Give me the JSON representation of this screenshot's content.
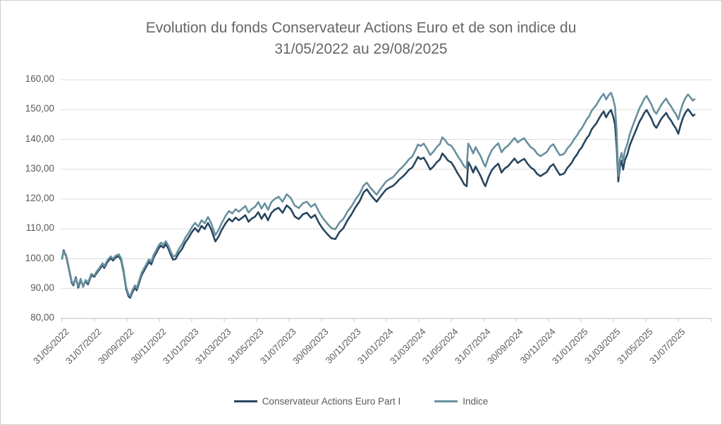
{
  "style": {
    "background": "#ffffff",
    "page_border": "#cfcfcf",
    "title_color": "#666666",
    "axis_text_color": "#595959",
    "grid_color": "#dcdcdc",
    "axis_line_color": "#c9c9c9"
  },
  "chart_data": {
    "type": "line",
    "title": "Evolution du fonds Conservateur Actions Euro et de son indice du 31/05/2022 au 29/08/2025",
    "title_lines": [
      "Evolution du fonds Conservateur Actions Euro et de son indice du",
      "31/05/2022 au 29/08/2025"
    ],
    "ylim": [
      80,
      160
    ],
    "yticks": [
      160,
      150,
      140,
      130,
      120,
      110,
      100,
      90,
      80
    ],
    "ytick_labels": [
      "160,00",
      "150,00",
      "140,00",
      "130,00",
      "120,00",
      "110,00",
      "100,00",
      "90,00",
      "80,00"
    ],
    "xtick_months": [
      0,
      2,
      4,
      6,
      8,
      10,
      12,
      14,
      16,
      18,
      20,
      22,
      24,
      26,
      28,
      30,
      32,
      34,
      36,
      38
    ],
    "xtick_labels": [
      "31/05/2022",
      "31/07/2022",
      "30/09/2022",
      "30/11/2022",
      "31/01/2023",
      "31/03/2023",
      "31/05/2023",
      "31/07/2023",
      "30/09/2023",
      "30/11/2023",
      "31/01/2024",
      "31/03/2024",
      "31/05/2024",
      "31/07/2024",
      "30/09/2024",
      "30/11/2024",
      "31/01/2025",
      "31/03/2025",
      "31/05/2025",
      "31/07/2025"
    ],
    "x_range_months": [
      0,
      39.3
    ],
    "x_start_date": "31/05/2022",
    "x_end_date": "29/08/2025",
    "grid": "horizontal",
    "legend_position": "bottom",
    "series": [
      {
        "name": "Conservateur Actions Euro Part I",
        "color": "#27455f"
      },
      {
        "name": "Indice",
        "color": "#68909f"
      }
    ],
    "points_format": [
      "t_months_since_31_05_2022",
      "part_i_value",
      "indice_value"
    ],
    "points": [
      [
        0,
        100.0,
        100.0
      ],
      [
        0.1,
        102.8,
        102.4
      ],
      [
        0.25,
        100.9,
        101.3
      ],
      [
        0.45,
        95.9,
        96.3
      ],
      [
        0.6,
        91.9,
        92.4
      ],
      [
        0.7,
        91.1,
        91.5
      ],
      [
        0.85,
        93.8,
        93.4
      ],
      [
        1.0,
        90.3,
        90.8
      ],
      [
        1.15,
        92.8,
        93.3
      ],
      [
        1.3,
        90.9,
        90.5
      ],
      [
        1.45,
        92.4,
        92.9
      ],
      [
        1.6,
        91.4,
        91.9
      ],
      [
        1.8,
        94.4,
        94.9
      ],
      [
        2.0,
        94.0,
        94.4
      ],
      [
        2.1,
        94.9,
        95.4
      ],
      [
        2.3,
        96.4,
        96.9
      ],
      [
        2.5,
        97.9,
        98.5
      ],
      [
        2.6,
        96.9,
        97.5
      ],
      [
        2.8,
        98.9,
        99.5
      ],
      [
        3.0,
        100.2,
        100.8
      ],
      [
        3.15,
        99.4,
        100.0
      ],
      [
        3.3,
        100.4,
        101.0
      ],
      [
        3.5,
        100.9,
        101.5
      ],
      [
        3.65,
        99.4,
        100.1
      ],
      [
        3.8,
        95.4,
        96.1
      ],
      [
        3.95,
        89.9,
        90.6
      ],
      [
        4.1,
        87.4,
        88.0
      ],
      [
        4.2,
        86.9,
        87.5
      ],
      [
        4.35,
        88.9,
        89.6
      ],
      [
        4.5,
        90.4,
        91.1
      ],
      [
        4.6,
        89.4,
        90.1
      ],
      [
        4.75,
        91.9,
        92.7
      ],
      [
        4.9,
        94.4,
        95.2
      ],
      [
        5.05,
        95.9,
        96.7
      ],
      [
        5.2,
        97.4,
        98.2
      ],
      [
        5.35,
        98.9,
        99.8
      ],
      [
        5.5,
        98.1,
        99.0
      ],
      [
        5.65,
        100.4,
        101.3
      ],
      [
        5.8,
        101.9,
        102.8
      ],
      [
        5.95,
        103.4,
        104.4
      ],
      [
        6.1,
        104.4,
        105.4
      ],
      [
        6.25,
        103.7,
        104.7
      ],
      [
        6.4,
        104.9,
        105.9
      ],
      [
        6.55,
        103.4,
        104.4
      ],
      [
        6.7,
        101.4,
        102.4
      ],
      [
        6.85,
        99.7,
        100.8
      ],
      [
        7.0,
        99.9,
        101.0
      ],
      [
        7.2,
        101.9,
        103.3
      ],
      [
        7.4,
        103.3,
        104.8
      ],
      [
        7.6,
        105.5,
        107.0
      ],
      [
        7.8,
        107.0,
        108.6
      ],
      [
        8.0,
        108.9,
        110.5
      ],
      [
        8.2,
        110.3,
        112.0
      ],
      [
        8.4,
        109.0,
        110.8
      ],
      [
        8.6,
        111.0,
        112.9
      ],
      [
        8.8,
        110.0,
        111.9
      ],
      [
        9.0,
        112.0,
        114.0
      ],
      [
        9.2,
        109.8,
        111.9
      ],
      [
        9.45,
        105.8,
        107.9
      ],
      [
        9.65,
        107.4,
        109.6
      ],
      [
        9.85,
        109.7,
        112.0
      ],
      [
        10.1,
        112.0,
        114.5
      ],
      [
        10.3,
        113.4,
        116.0
      ],
      [
        10.5,
        112.5,
        115.2
      ],
      [
        10.7,
        113.8,
        116.6
      ],
      [
        10.9,
        112.9,
        115.8
      ],
      [
        11.1,
        113.7,
        116.7
      ],
      [
        11.3,
        114.6,
        117.7
      ],
      [
        11.5,
        112.4,
        115.5
      ],
      [
        11.7,
        113.5,
        116.7
      ],
      [
        11.9,
        114.1,
        117.4
      ],
      [
        12.1,
        115.6,
        119.0
      ],
      [
        12.3,
        113.4,
        116.8
      ],
      [
        12.5,
        115.1,
        118.6
      ],
      [
        12.7,
        112.9,
        116.4
      ],
      [
        12.9,
        115.3,
        118.9
      ],
      [
        13.1,
        116.4,
        120.0
      ],
      [
        13.35,
        117.1,
        120.8
      ],
      [
        13.6,
        115.4,
        119.1
      ],
      [
        13.85,
        117.9,
        121.6
      ],
      [
        14.1,
        116.7,
        120.4
      ],
      [
        14.35,
        114.1,
        117.8
      ],
      [
        14.6,
        113.3,
        117.0
      ],
      [
        14.85,
        114.9,
        118.6
      ],
      [
        15.1,
        115.4,
        119.1
      ],
      [
        15.35,
        113.7,
        117.4
      ],
      [
        15.6,
        114.7,
        118.4
      ],
      [
        15.85,
        111.9,
        115.6
      ],
      [
        16.1,
        109.9,
        113.5
      ],
      [
        16.35,
        108.3,
        111.8
      ],
      [
        16.6,
        106.9,
        110.3
      ],
      [
        16.85,
        106.6,
        109.9
      ],
      [
        17.1,
        108.9,
        112.1
      ],
      [
        17.35,
        110.3,
        113.4
      ],
      [
        17.6,
        112.9,
        115.8
      ],
      [
        17.85,
        114.9,
        117.6
      ],
      [
        18.1,
        117.3,
        119.9
      ],
      [
        18.35,
        119.3,
        121.8
      ],
      [
        18.6,
        122.3,
        124.6
      ],
      [
        18.8,
        123.3,
        125.5
      ],
      [
        19.0,
        121.6,
        123.9
      ],
      [
        19.2,
        120.3,
        122.7
      ],
      [
        19.4,
        119.1,
        121.5
      ],
      [
        19.6,
        120.6,
        123.1
      ],
      [
        19.8,
        122.0,
        124.6
      ],
      [
        20.0,
        123.3,
        126.0
      ],
      [
        20.2,
        123.9,
        126.7
      ],
      [
        20.4,
        124.4,
        127.3
      ],
      [
        20.6,
        125.4,
        128.5
      ],
      [
        20.8,
        126.6,
        129.8
      ],
      [
        21.0,
        127.5,
        130.8
      ],
      [
        21.2,
        128.6,
        132.0
      ],
      [
        21.4,
        129.9,
        133.4
      ],
      [
        21.6,
        130.6,
        134.3
      ],
      [
        21.8,
        132.6,
        136.5
      ],
      [
        21.95,
        134.1,
        138.3
      ],
      [
        22.1,
        133.4,
        137.8
      ],
      [
        22.3,
        133.9,
        138.6
      ],
      [
        22.5,
        132.1,
        136.9
      ],
      [
        22.7,
        129.9,
        134.8
      ],
      [
        22.9,
        130.9,
        135.9
      ],
      [
        23.1,
        132.3,
        137.4
      ],
      [
        23.3,
        133.3,
        138.5
      ],
      [
        23.45,
        135.3,
        140.7
      ],
      [
        23.6,
        134.4,
        139.9
      ],
      [
        23.8,
        132.9,
        138.4
      ],
      [
        24.0,
        132.3,
        137.9
      ],
      [
        24.2,
        130.6,
        136.3
      ],
      [
        24.4,
        128.6,
        134.4
      ],
      [
        24.6,
        126.9,
        132.8
      ],
      [
        24.8,
        124.9,
        130.9
      ],
      [
        24.95,
        124.3,
        130.4
      ],
      [
        25.05,
        132.4,
        138.6
      ],
      [
        25.2,
        130.9,
        137.2
      ],
      [
        25.35,
        128.9,
        135.3
      ],
      [
        25.5,
        130.9,
        137.4
      ],
      [
        25.65,
        129.4,
        135.9
      ],
      [
        25.8,
        127.9,
        134.5
      ],
      [
        26.0,
        125.3,
        131.9
      ],
      [
        26.1,
        124.3,
        130.9
      ],
      [
        26.3,
        127.4,
        134.1
      ],
      [
        26.5,
        129.7,
        136.4
      ],
      [
        26.7,
        130.9,
        137.7
      ],
      [
        26.9,
        131.9,
        138.7
      ],
      [
        27.1,
        128.9,
        135.7
      ],
      [
        27.3,
        130.3,
        137.1
      ],
      [
        27.5,
        131.0,
        137.9
      ],
      [
        27.7,
        132.3,
        139.2
      ],
      [
        27.9,
        133.6,
        140.5
      ],
      [
        28.1,
        132.1,
        139.0
      ],
      [
        28.3,
        132.9,
        139.8
      ],
      [
        28.5,
        133.5,
        140.4
      ],
      [
        28.7,
        131.9,
        138.8
      ],
      [
        28.9,
        130.6,
        137.4
      ],
      [
        29.1,
        129.9,
        136.7
      ],
      [
        29.3,
        128.4,
        135.2
      ],
      [
        29.5,
        127.7,
        134.4
      ],
      [
        29.7,
        128.4,
        135.1
      ],
      [
        29.9,
        129.1,
        135.8
      ],
      [
        30.1,
        130.9,
        137.6
      ],
      [
        30.3,
        131.7,
        138.4
      ],
      [
        30.5,
        129.8,
        136.4
      ],
      [
        30.7,
        128.1,
        134.7
      ],
      [
        30.9,
        128.4,
        135.0
      ],
      [
        31.0,
        128.9,
        135.5
      ],
      [
        31.15,
        130.4,
        136.9
      ],
      [
        31.3,
        131.3,
        137.8
      ],
      [
        31.45,
        132.4,
        138.9
      ],
      [
        31.6,
        133.9,
        140.3
      ],
      [
        31.75,
        134.9,
        141.3
      ],
      [
        31.9,
        136.4,
        142.8
      ],
      [
        32.05,
        137.3,
        143.7
      ],
      [
        32.2,
        138.9,
        145.2
      ],
      [
        32.35,
        140.4,
        146.7
      ],
      [
        32.5,
        141.4,
        147.7
      ],
      [
        32.65,
        143.3,
        149.5
      ],
      [
        32.8,
        144.4,
        150.6
      ],
      [
        32.95,
        145.4,
        151.6
      ],
      [
        33.1,
        146.9,
        153.0
      ],
      [
        33.25,
        148.3,
        154.3
      ],
      [
        33.4,
        149.4,
        155.3
      ],
      [
        33.55,
        147.4,
        153.4
      ],
      [
        33.7,
        148.9,
        154.8
      ],
      [
        33.85,
        149.9,
        155.7
      ],
      [
        34.0,
        147.4,
        153.3
      ],
      [
        34.1,
        144.9,
        150.8
      ],
      [
        34.2,
        137.4,
        142.9
      ],
      [
        34.3,
        125.9,
        127.7
      ],
      [
        34.4,
        130.9,
        133.3
      ],
      [
        34.5,
        132.9,
        135.5
      ],
      [
        34.6,
        129.9,
        132.7
      ],
      [
        34.7,
        132.9,
        136.1
      ],
      [
        34.85,
        134.9,
        138.4
      ],
      [
        35.0,
        137.9,
        141.6
      ],
      [
        35.15,
        139.9,
        143.9
      ],
      [
        35.3,
        141.9,
        146.1
      ],
      [
        35.45,
        143.9,
        148.3
      ],
      [
        35.6,
        145.9,
        150.4
      ],
      [
        35.75,
        147.3,
        151.9
      ],
      [
        35.9,
        148.9,
        153.6
      ],
      [
        36.05,
        149.9,
        154.6
      ],
      [
        36.2,
        148.4,
        153.1
      ],
      [
        36.35,
        146.9,
        151.6
      ],
      [
        36.5,
        144.9,
        149.6
      ],
      [
        36.65,
        143.9,
        148.6
      ],
      [
        36.8,
        145.4,
        150.1
      ],
      [
        36.95,
        146.9,
        151.6
      ],
      [
        37.1,
        147.9,
        152.7
      ],
      [
        37.25,
        148.9,
        153.7
      ],
      [
        37.4,
        147.4,
        152.2
      ],
      [
        37.55,
        146.4,
        151.2
      ],
      [
        37.7,
        144.9,
        149.7
      ],
      [
        37.85,
        143.7,
        148.5
      ],
      [
        38.0,
        141.9,
        146.7
      ],
      [
        38.15,
        144.9,
        149.8
      ],
      [
        38.3,
        147.4,
        152.3
      ],
      [
        38.45,
        149.1,
        154.0
      ],
      [
        38.6,
        150.1,
        155.1
      ],
      [
        38.75,
        149.1,
        154.1
      ],
      [
        38.9,
        147.9,
        153.0
      ],
      [
        39.0,
        148.3,
        153.5
      ]
    ]
  }
}
